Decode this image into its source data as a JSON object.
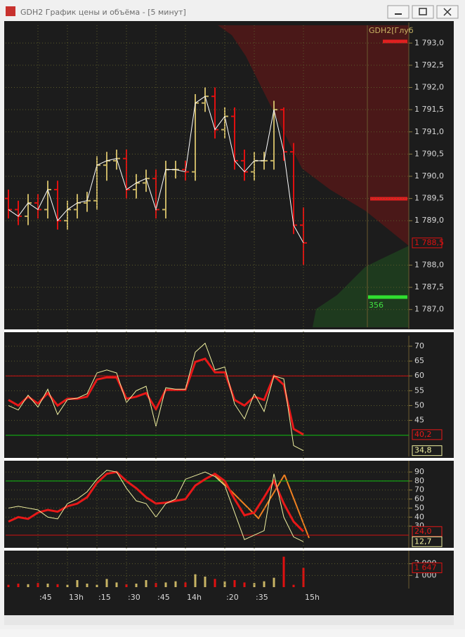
{
  "window": {
    "title": "GDH2 График цены и объёма - [5 минут]"
  },
  "chart_data": [
    {
      "type": "ohlc",
      "annotations": [
        "GDH2[Глуб",
        "356"
      ],
      "up_color": "#c8b464",
      "down_color": "#e01010",
      "line_color": "#ffffff",
      "open": [
        1789.5,
        1789.25,
        1789.1,
        1789.4,
        1789.25,
        1789.7,
        1789.0,
        1789.25,
        1789.4,
        1789.45,
        1790.25,
        1790.35,
        1790.4,
        1789.7,
        1789.85,
        1789.95,
        1789.25,
        1790.15,
        1790.15,
        1790.1,
        1791.65,
        1791.8,
        1791.05,
        1791.35,
        1790.35,
        1790.1,
        1790.35,
        1790.35,
        1791.5,
        1790.55,
        1788.9
      ],
      "high": [
        1789.7,
        1789.45,
        1789.6,
        1789.6,
        1789.9,
        1789.9,
        1789.45,
        1789.6,
        1789.65,
        1790.45,
        1790.55,
        1790.6,
        1790.6,
        1790.05,
        1790.15,
        1790.15,
        1790.35,
        1790.35,
        1790.35,
        1791.85,
        1792.0,
        1792.0,
        1791.55,
        1791.55,
        1790.6,
        1790.55,
        1790.55,
        1791.7,
        1791.55,
        1790.75,
        1789.3
      ],
      "low": [
        1789.05,
        1788.9,
        1788.9,
        1789.05,
        1789.05,
        1788.8,
        1788.8,
        1789.05,
        1789.2,
        1789.25,
        1789.9,
        1790.15,
        1789.5,
        1789.5,
        1789.65,
        1789.05,
        1789.05,
        1789.95,
        1789.9,
        1789.9,
        1791.45,
        1790.85,
        1790.85,
        1790.15,
        1789.9,
        1789.9,
        1790.15,
        1790.15,
        1790.35,
        1788.7,
        1788.0
      ],
      "close": [
        1789.25,
        1789.1,
        1789.4,
        1789.25,
        1789.7,
        1789.0,
        1789.25,
        1789.4,
        1789.45,
        1790.25,
        1790.35,
        1790.4,
        1789.7,
        1789.85,
        1789.95,
        1789.25,
        1790.15,
        1790.15,
        1790.1,
        1791.65,
        1791.8,
        1791.05,
        1791.35,
        1790.35,
        1790.1,
        1790.35,
        1790.35,
        1791.5,
        1790.55,
        1788.9,
        1788.5
      ],
      "value_labels": [
        null,
        null,
        null,
        null,
        null,
        null,
        null,
        null,
        null,
        null,
        null,
        null,
        null,
        null,
        null,
        null,
        null,
        null,
        null,
        null,
        null,
        null,
        null,
        null,
        null,
        null,
        null,
        null,
        null,
        null,
        "1 788,5"
      ],
      "ylim": [
        1786.6,
        1793.4
      ],
      "yticks": [
        {
          "value": 1793.0,
          "label": "1 793,0"
        },
        {
          "value": 1792.5,
          "label": "1 792,5"
        },
        {
          "value": 1792.0,
          "label": "1 792,0"
        },
        {
          "value": 1791.5,
          "label": "1 791,5"
        },
        {
          "value": 1791.0,
          "label": "1 791,0"
        },
        {
          "value": 1790.5,
          "label": "1 790,5"
        },
        {
          "value": 1790.0,
          "label": "1 790,0"
        },
        {
          "value": 1789.5,
          "label": "1 789,5"
        },
        {
          "value": 1789.0,
          "label": "1 789,0"
        },
        {
          "value": 1788.0,
          "label": "1 788,0"
        },
        {
          "value": 1787.5,
          "label": "1 787,5"
        },
        {
          "value": 1787.0,
          "label": "1 787,0"
        }
      ]
    },
    {
      "type": "line",
      "ylim": [
        33.3,
        72.6
      ],
      "yticks": [
        70,
        65,
        60,
        55,
        50,
        45
      ],
      "levels": [
        {
          "value": 60,
          "color": "#d01010"
        },
        {
          "value": 40,
          "color": "#10c010"
        }
      ],
      "series": [
        {
          "color": "#e81818",
          "width": 3,
          "values": [
            51.9,
            50,
            53,
            50.7,
            54.2,
            50,
            52.3,
            52.3,
            53,
            58.8,
            59.5,
            59.5,
            52.3,
            53,
            54.2,
            48.8,
            55.3,
            55.3,
            55.3,
            64.7,
            65.8,
            61.2,
            61.2,
            51.9,
            50,
            53,
            51.9,
            60,
            57,
            42.1,
            40.2
          ],
          "value_labels": [
            null,
            null,
            null,
            null,
            null,
            null,
            null,
            null,
            null,
            null,
            null,
            null,
            null,
            null,
            null,
            null,
            null,
            null,
            null,
            null,
            null,
            null,
            null,
            null,
            null,
            null,
            null,
            null,
            null,
            null,
            "40,2"
          ]
        },
        {
          "color": "#f0f0a0",
          "width": 1,
          "values": [
            50,
            48.5,
            53.5,
            49.5,
            55.5,
            47,
            52,
            52.5,
            54,
            61,
            62,
            61,
            51,
            55,
            56.5,
            43,
            56,
            55.5,
            55.5,
            68,
            71,
            62,
            63,
            50.5,
            45.5,
            54,
            48,
            60,
            59,
            36.5,
            34.8
          ],
          "value_labels": [
            null,
            null,
            null,
            null,
            null,
            null,
            null,
            null,
            null,
            null,
            null,
            null,
            null,
            null,
            null,
            null,
            null,
            null,
            null,
            null,
            null,
            null,
            null,
            null,
            null,
            null,
            null,
            null,
            null,
            null,
            "34,8"
          ]
        }
      ]
    },
    {
      "type": "line",
      "ylim": [
        7.5,
        99.4
      ],
      "yticks": [
        90,
        80,
        70,
        60,
        50,
        40,
        30
      ],
      "levels": [
        {
          "value": 80,
          "color": "#10c010"
        },
        {
          "value": 20,
          "color": "#d01010"
        }
      ],
      "series": [
        {
          "color": "#e81818",
          "width": 3,
          "values": [
            35,
            40,
            38,
            45,
            48,
            46,
            52,
            55,
            62,
            78,
            88,
            90,
            80,
            72,
            62,
            55,
            56,
            58,
            60,
            75,
            82,
            88,
            80,
            60,
            42,
            45,
            62,
            80,
            55,
            35,
            24.0
          ],
          "value_labels": [
            null,
            null,
            null,
            null,
            null,
            null,
            null,
            null,
            null,
            null,
            null,
            null,
            null,
            null,
            null,
            null,
            null,
            null,
            null,
            null,
            null,
            null,
            null,
            null,
            null,
            null,
            null,
            null,
            null,
            null,
            "24,0"
          ]
        },
        {
          "color": "#f0f0a0",
          "width": 1,
          "values": [
            50,
            52,
            50,
            48,
            40,
            38,
            55,
            60,
            68,
            82,
            92,
            90,
            72,
            58,
            55,
            40,
            55,
            60,
            82,
            86,
            90,
            85,
            75,
            45,
            15,
            20,
            25,
            88,
            40,
            18,
            12.7
          ],
          "value_labels": [
            null,
            null,
            null,
            null,
            null,
            null,
            null,
            null,
            null,
            null,
            null,
            null,
            null,
            null,
            null,
            null,
            null,
            null,
            null,
            null,
            null,
            null,
            null,
            null,
            null,
            null,
            null,
            null,
            null,
            null,
            "12,7"
          ]
        }
      ]
    },
    {
      "type": "bar",
      "ylim": [
        0,
        2880
      ],
      "yticks": [
        {
          "value": 2000,
          "label": "2 000"
        },
        {
          "value": 1000,
          "label": "1 000"
        }
      ],
      "categories": [
        null,
        null,
        null,
        ":45",
        null,
        null,
        "13h",
        null,
        null,
        ":15",
        null,
        null,
        ":30",
        null,
        null,
        ":45",
        null,
        null,
        "14h",
        null,
        null,
        null,
        ":20",
        null,
        null,
        ":35",
        null,
        null,
        null,
        null,
        "15h"
      ],
      "values": [
        200,
        300,
        250,
        350,
        300,
        250,
        200,
        600,
        300,
        200,
        700,
        400,
        250,
        300,
        600,
        350,
        400,
        500,
        400,
        1100,
        900,
        700,
        500,
        600,
        400,
        350,
        500,
        800,
        2600,
        200,
        1647
      ],
      "value_labels": [
        null,
        null,
        null,
        null,
        null,
        null,
        null,
        null,
        null,
        null,
        null,
        null,
        null,
        null,
        null,
        null,
        null,
        null,
        null,
        null,
        null,
        null,
        null,
        null,
        null,
        null,
        null,
        null,
        null,
        null,
        "1 647"
      ]
    }
  ]
}
